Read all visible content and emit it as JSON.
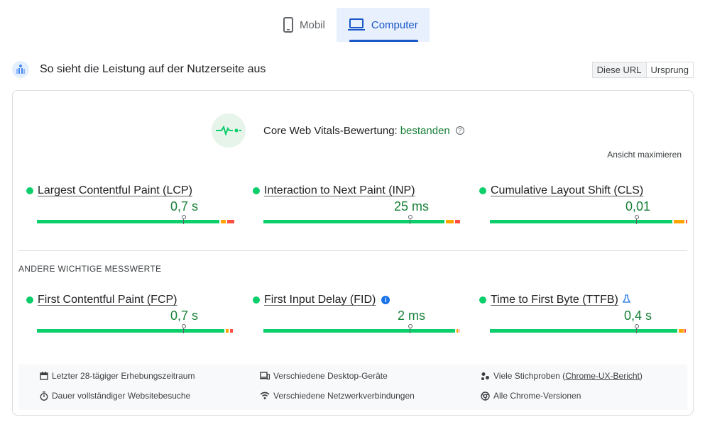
{
  "tabs": [
    {
      "label": "Mobil",
      "icon": "smartphone-icon",
      "active": false
    },
    {
      "label": "Computer",
      "icon": "laptop-icon",
      "active": true
    }
  ],
  "header": {
    "title": "So sieht die Leistung auf der Nutzerseite aus",
    "toggle": [
      "Diese URL",
      "Ursprung"
    ]
  },
  "assessment": {
    "label": "Core Web Vitals-Bewertung:",
    "result": "bestanden",
    "help": "?",
    "expand_label": "Ansicht maximieren"
  },
  "core_metrics": [
    {
      "name": "Largest Contentful Paint (LCP)",
      "value": "0,7 s",
      "status": "good",
      "distribution": {
        "good": 0.93,
        "needs_improvement": 0.03,
        "poor": 0.04
      },
      "marker_fraction": 0.75
    },
    {
      "name": "Interaction to Next Paint (INP)",
      "value": "25 ms",
      "status": "good",
      "distribution": {
        "good": 0.92,
        "needs_improvement": 0.04,
        "poor": 0.03
      },
      "marker_fraction": 0.75
    },
    {
      "name": "Cumulative Layout Shift (CLS)",
      "value": "0,01",
      "status": "good",
      "distribution": {
        "good": 0.92,
        "needs_improvement": 0.06,
        "poor": 0.01
      },
      "marker_fraction": 0.75
    }
  ],
  "other_section_title": "ANDERE WICHTIGE MESSWERTE",
  "other_metrics": [
    {
      "name": "First Contentful Paint (FCP)",
      "value": "0,7 s",
      "status": "good",
      "extra_icon": "",
      "distribution": {
        "good": 0.95,
        "needs_improvement": 0.02,
        "poor": 0.02
      },
      "marker_fraction": 0.75
    },
    {
      "name": "First Input Delay (FID)",
      "value": "2 ms",
      "status": "good",
      "extra_icon": "info-icon",
      "extra_text": "i",
      "distribution": {
        "good": 0.98,
        "needs_improvement": 0.01,
        "poor": 0.01
      },
      "marker_fraction": 0.75
    },
    {
      "name": "Time to First Byte (TTFB)",
      "value": "0,4 s",
      "status": "good",
      "extra_icon": "flask-icon",
      "distribution": {
        "good": 0.95,
        "needs_improvement": 0.03,
        "poor": 0.01
      },
      "marker_fraction": 0.75
    }
  ],
  "footer": {
    "period": "Letzter 28-tägiger Erhebungszeitraum",
    "devices": "Verschiedene Desktop-Geräte",
    "samples_prefix": "Viele Stichproben (",
    "samples_link": "Chrome-UX-Bericht",
    "samples_suffix": ")",
    "visits": "Dauer vollständiger Websitebesuche",
    "network": "Verschiedene Netzwerkverbindungen",
    "versions": "Alle Chrome-Versionen"
  },
  "colors": {
    "good": "#0cce6b",
    "needs_improvement": "#ffa400",
    "poor": "#ff4e42",
    "accent": "#1a56c6",
    "pass_text": "#188038"
  }
}
